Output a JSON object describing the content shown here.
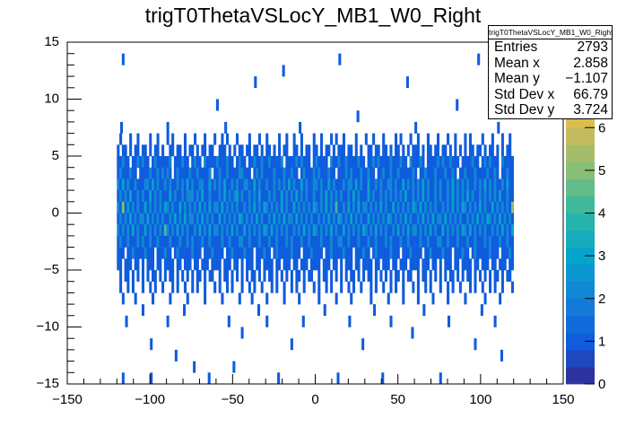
{
  "chart_data": {
    "type": "heatmap",
    "title": "trigT0ThetaVSLocY_MB1_W0_Right",
    "xlabel": "",
    "ylabel": "",
    "xlim": [
      -150,
      150
    ],
    "ylim": [
      -15,
      15
    ],
    "zlim": [
      0,
      8
    ],
    "x_ticks": [
      "−150",
      "−100",
      "−50",
      "0",
      "50",
      "100",
      "150"
    ],
    "x_tick_values": [
      -150,
      -100,
      -50,
      0,
      50,
      100,
      150
    ],
    "y_ticks": [
      "−15",
      "−10",
      "−5",
      "0",
      "5",
      "10",
      "15"
    ],
    "y_tick_values": [
      -15,
      -10,
      -5,
      0,
      5,
      10,
      15
    ],
    "z_ticks": [
      "0",
      "1",
      "2",
      "3",
      "4",
      "5",
      "6"
    ],
    "z_tick_values": [
      0,
      1,
      2,
      3,
      4,
      5,
      6
    ],
    "bin_width_x": 1.5,
    "bin_width_y": 1,
    "dense_x_start": -120,
    "dense_rows": [
      {
        "y": 6,
        "counts": "0100010010 0001001000 1010000100 0100010001 0010100010 0001000100 1000010010 0100100001 0010001010 0100001000 1001000100 0010100010 0100010001 0001001000 1010000100 0100010010"
      },
      {
        "y": 5,
        "counts": "1011010110 1101011010 0110110101 1010110110 0111010101 1011011010 1101010110 0110101101 1010110101 1101101010 0110110110 1011010101 1101011011 0110101010 1011011010 1101010110"
      },
      {
        "y": 4,
        "counts": "1121101121 2110121111 1201112110 1211021111 2111211012 1101121121 1211112011 1121211101 2111102112 1121111211 0112121111 2111211021 1121011112 1211211101 1112110121 2111021111"
      },
      {
        "y": 3,
        "counts": "1211121101 1112112121 2101211112 1121111201 1211211112 2111012121 1112111211 2110121112 1211121101 1121211121 1211011211 2112111112 1011211121 1121121011 2111211112 1121011211"
      },
      {
        "y": 2,
        "counts": "2131211211 1221312112 1211212131 2112211312 1213112121 1221131211 2112121213 1211312112 2121131211 1212213121 1311212112 2121131212 1213121121 2112131212 1211212131 2121121311"
      },
      {
        "y": 1,
        "counts": "1212131121 2113121211 1312112122 2121311211 1213121231 2112121311 1212113121 2131212112 1121312121 2112131211 1312112121 2121213112 1213121121 2112131212 1312112121 2121311211"
      },
      {
        "y": 0,
        "counts": "2151312121 1312121213 2121131212 1213121312 2131212121 1212131213 2121213121 1312121213 2121312141 1213121312 2121213121 1312121213 2131212121 1212131213 2121213121 1312121215"
      },
      {
        "y": -1,
        "counts": "1212131212 2131212121 1213121312 2121312121 1312121213 2121213121 1213121312 2131212121 1212131213 2121312121 1312121213 2121213121 1213121312 2131212121 1212131213 2121312121"
      },
      {
        "y": -2,
        "counts": "2121213121 1312121214 2121312121 1213121312 2121213121 1312121213 2131212121 1212131213 2121213121 1312121213 2121312121 1213121312 2121213121 1312121213 2131212121 1212131213"
      },
      {
        "y": -3,
        "counts": "1211211121 2112112111 1211121121 2111211211 1121121112 2112111211 1211211121 2111211211 1121112112 2112111211 1211211121 2111211211 1121121112 2112111211 1211211121 2111211211"
      },
      {
        "y": -4,
        "counts": "1110112111 1211101112 1101211111 2111011121 1110112111 1211101112 1101211111 2111011121 1110112111 1211101112 1101211111 2111011121 1110112111 1211101112 1101211111 2111011121"
      },
      {
        "y": -5,
        "counts": "1101110110 1011101101 1110110111 0110111011 1101110110 1011101101 1110110111 0110111011 1101110110 1011101101 1110110111 0110111011 1101110110 1011101101 1110110111 0110111011"
      },
      {
        "y": -6,
        "counts": "0101101010 1010110101 0110101010 1011010110 0101101010 1010110101 0110101010 1011010110 0101101010 1010110101 0110101010 1011010110 0101101010 1010110101 0110101010 1011010110"
      },
      {
        "y": -7,
        "counts": "0100101000 1001010010 0010100100 1010010001 0100101000 1001010010 0010100100 1010010001 0100101000 1001010010 0010100100 1010010001 0100101000 1001010010 0010100100 1010010001"
      },
      {
        "y": -8,
        "counts": "0010000100 0000100000 0100000010 0000010000 0010000001 0000100000 1000000100 0001000000 0100000010 0000100000 0010000001 0000010000 0100000100 0001000000 1000000010 0000100000"
      }
    ],
    "sparse_bins": [
      [
        -117,
        13,
        1
      ],
      [
        -117,
        -15,
        1
      ],
      [
        -100,
        -15,
        1
      ],
      [
        -65,
        -15,
        1
      ],
      [
        -23,
        -15,
        1
      ],
      [
        13,
        -15,
        1
      ],
      [
        40,
        -15,
        1
      ],
      [
        75,
        -15,
        1
      ],
      [
        -50,
        -14,
        1
      ],
      [
        -74,
        -14,
        1
      ],
      [
        -115,
        -10,
        1
      ],
      [
        -90,
        -10,
        1
      ],
      [
        -53,
        -10,
        1
      ],
      [
        -30,
        -10,
        1
      ],
      [
        -8,
        -10,
        1
      ],
      [
        20,
        -10,
        1
      ],
      [
        45,
        -10,
        1
      ],
      [
        80,
        -10,
        1
      ],
      [
        108,
        -10,
        1
      ],
      [
        -100,
        -12,
        1
      ],
      [
        -85,
        -13,
        1
      ],
      [
        -45,
        -11,
        1
      ],
      [
        -15,
        -12,
        1
      ],
      [
        28,
        -12,
        1
      ],
      [
        58,
        -11,
        1
      ],
      [
        96,
        -12,
        1
      ],
      [
        112,
        -13,
        1
      ],
      [
        -105,
        -9,
        1
      ],
      [
        -80,
        -9,
        1
      ],
      [
        -35,
        -9,
        1
      ],
      [
        5,
        -9,
        1
      ],
      [
        35,
        -9,
        1
      ],
      [
        65,
        -9,
        1
      ],
      [
        100,
        -9,
        1
      ],
      [
        -37,
        11,
        1
      ],
      [
        -20,
        12,
        1
      ],
      [
        14,
        13,
        1
      ],
      [
        55,
        11,
        1
      ],
      [
        98,
        13,
        1
      ],
      [
        85,
        9,
        1
      ],
      [
        -60,
        9,
        1
      ],
      [
        -118,
        7,
        1
      ],
      [
        -90,
        7,
        1
      ],
      [
        -55,
        7,
        1
      ],
      [
        -10,
        7,
        1
      ],
      [
        25,
        8,
        1
      ],
      [
        60,
        7,
        1
      ],
      [
        110,
        7,
        1
      ]
    ],
    "palette_stops": [
      "#35298e",
      "#0f5cdd",
      "#1481d6",
      "#06a4ca",
      "#2eb7a4",
      "#87bf77",
      "#d1bb59",
      "#fec832",
      "#f9fb0e"
    ]
  },
  "stats": {
    "name": "trigT0ThetaVSLocY_MB1_W0_Right",
    "rows": [
      {
        "label": "Entries",
        "value": "2793"
      },
      {
        "label": "Mean x",
        "value": "2.858"
      },
      {
        "label": "Mean y",
        "value": "−1.107"
      },
      {
        "label": "Std Dev x",
        "value": "66.79"
      },
      {
        "label": "Std Dev y",
        "value": "3.724"
      }
    ]
  }
}
